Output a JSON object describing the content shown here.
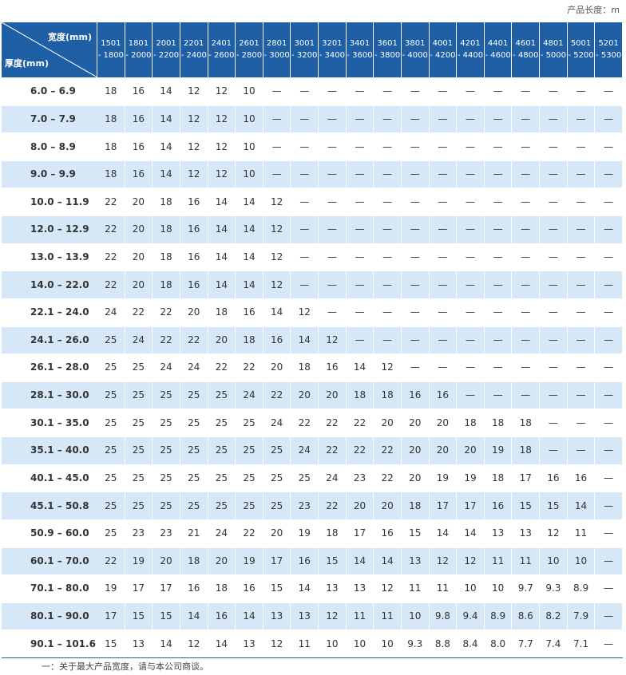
{
  "header": {
    "unit_note": "产品长度：m"
  },
  "table": {
    "corner": {
      "width_label": "宽度(mm)",
      "thickness_label": "厚度(mm)"
    },
    "columns": [
      [
        "1501",
        "- 1800"
      ],
      [
        "1801",
        "- 2000"
      ],
      [
        "2001",
        "- 2200"
      ],
      [
        "2201",
        "- 2400"
      ],
      [
        "2401",
        "- 2600"
      ],
      [
        "2601",
        "- 2800"
      ],
      [
        "2801",
        "- 3000"
      ],
      [
        "3001",
        "- 3200"
      ],
      [
        "3201",
        "- 3400"
      ],
      [
        "3401",
        "- 3600"
      ],
      [
        "3601",
        "- 3800"
      ],
      [
        "3801",
        "- 4000"
      ],
      [
        "4001",
        "- 4200"
      ],
      [
        "4201",
        "- 4400"
      ],
      [
        "4401",
        "- 4600"
      ],
      [
        "4601",
        "- 4800"
      ],
      [
        "4801",
        "- 5000"
      ],
      [
        "5001",
        "- 5200"
      ],
      [
        "5201",
        "- 5300"
      ]
    ],
    "rows": [
      {
        "label": "6.0 –  6.9",
        "cells": [
          "18",
          "16",
          "14",
          "12",
          "12",
          "10",
          "—",
          "—",
          "—",
          "—",
          "—",
          "—",
          "—",
          "—",
          "—",
          "—",
          "—",
          "—",
          "—"
        ]
      },
      {
        "label": "7.0 –  7.9",
        "cells": [
          "18",
          "16",
          "14",
          "12",
          "12",
          "10",
          "—",
          "—",
          "—",
          "—",
          "—",
          "—",
          "—",
          "—",
          "—",
          "—",
          "—",
          "—",
          "—"
        ]
      },
      {
        "label": "8.0 –  8.9",
        "cells": [
          "18",
          "16",
          "14",
          "12",
          "12",
          "10",
          "—",
          "—",
          "—",
          "—",
          "—",
          "—",
          "—",
          "—",
          "—",
          "—",
          "—",
          "—",
          "—"
        ]
      },
      {
        "label": "9.0 –  9.9",
        "cells": [
          "18",
          "16",
          "14",
          "12",
          "12",
          "10",
          "—",
          "—",
          "—",
          "—",
          "—",
          "—",
          "—",
          "—",
          "—",
          "—",
          "—",
          "—",
          "—"
        ]
      },
      {
        "label": "10.0 – 11.9",
        "cells": [
          "22",
          "20",
          "18",
          "16",
          "14",
          "14",
          "12",
          "—",
          "—",
          "—",
          "—",
          "—",
          "—",
          "—",
          "—",
          "—",
          "—",
          "—",
          "—"
        ]
      },
      {
        "label": "12.0 – 12.9",
        "cells": [
          "22",
          "20",
          "18",
          "16",
          "14",
          "14",
          "12",
          "—",
          "—",
          "—",
          "—",
          "—",
          "—",
          "—",
          "—",
          "—",
          "—",
          "—",
          "—"
        ]
      },
      {
        "label": "13.0 – 13.9",
        "cells": [
          "22",
          "20",
          "18",
          "16",
          "14",
          "14",
          "12",
          "—",
          "—",
          "—",
          "—",
          "—",
          "—",
          "—",
          "—",
          "—",
          "—",
          "—",
          "—"
        ]
      },
      {
        "label": "14.0 – 22.0",
        "cells": [
          "22",
          "20",
          "18",
          "16",
          "14",
          "14",
          "12",
          "—",
          "—",
          "—",
          "—",
          "—",
          "—",
          "—",
          "—",
          "—",
          "—",
          "—",
          "—"
        ]
      },
      {
        "label": "22.1 – 24.0",
        "cells": [
          "24",
          "22",
          "22",
          "20",
          "18",
          "16",
          "14",
          "12",
          "—",
          "—",
          "—",
          "—",
          "—",
          "—",
          "—",
          "—",
          "—",
          "—",
          "—"
        ]
      },
      {
        "label": "24.1 – 26.0",
        "cells": [
          "25",
          "24",
          "22",
          "22",
          "20",
          "18",
          "16",
          "14",
          "12",
          "—",
          "—",
          "—",
          "—",
          "—",
          "—",
          "—",
          "—",
          "—",
          "—"
        ]
      },
      {
        "label": "26.1 – 28.0",
        "cells": [
          "25",
          "25",
          "24",
          "24",
          "22",
          "22",
          "20",
          "18",
          "16",
          "14",
          "12",
          "—",
          "—",
          "—",
          "—",
          "—",
          "—",
          "—",
          "—"
        ]
      },
      {
        "label": "28.1 – 30.0",
        "cells": [
          "25",
          "25",
          "25",
          "25",
          "25",
          "24",
          "22",
          "20",
          "20",
          "18",
          "18",
          "16",
          "16",
          "—",
          "—",
          "—",
          "—",
          "—",
          "—"
        ]
      },
      {
        "label": "30.1 – 35.0",
        "cells": [
          "25",
          "25",
          "25",
          "25",
          "25",
          "25",
          "24",
          "22",
          "22",
          "22",
          "20",
          "20",
          "20",
          "18",
          "18",
          "18",
          "—",
          "—",
          "—"
        ]
      },
      {
        "label": "35.1 – 40.0",
        "cells": [
          "25",
          "25",
          "25",
          "25",
          "25",
          "25",
          "25",
          "24",
          "22",
          "22",
          "22",
          "20",
          "20",
          "20",
          "19",
          "18",
          "—",
          "—",
          "—"
        ]
      },
      {
        "label": "40.1 – 45.0",
        "cells": [
          "25",
          "25",
          "25",
          "25",
          "25",
          "25",
          "25",
          "25",
          "24",
          "23",
          "22",
          "20",
          "19",
          "19",
          "18",
          "17",
          "16",
          "16",
          "—"
        ]
      },
      {
        "label": "45.1 – 50.8",
        "cells": [
          "25",
          "25",
          "25",
          "25",
          "25",
          "25",
          "25",
          "23",
          "22",
          "20",
          "20",
          "18",
          "17",
          "17",
          "16",
          "15",
          "15",
          "14",
          "—"
        ]
      },
      {
        "label": "50.9 – 60.0",
        "cells": [
          "25",
          "23",
          "23",
          "21",
          "24",
          "22",
          "20",
          "19",
          "18",
          "17",
          "16",
          "15",
          "14",
          "14",
          "13",
          "13",
          "12",
          "11",
          "—"
        ]
      },
      {
        "label": "60.1 – 70.0",
        "cells": [
          "22",
          "19",
          "20",
          "18",
          "20",
          "19",
          "17",
          "16",
          "15",
          "14",
          "14",
          "13",
          "12",
          "12",
          "11",
          "11",
          "10",
          "10",
          "—"
        ]
      },
      {
        "label": "70.1 – 80.0",
        "cells": [
          "19",
          "17",
          "17",
          "16",
          "18",
          "16",
          "15",
          "14",
          "13",
          "13",
          "12",
          "11",
          "11",
          "10",
          "10",
          "9.7",
          "9.3",
          "8.9",
          "—"
        ]
      },
      {
        "label": "80.1 – 90.0",
        "cells": [
          "17",
          "15",
          "15",
          "14",
          "16",
          "14",
          "13",
          "13",
          "12",
          "11",
          "11",
          "10",
          "9.8",
          "9.4",
          "8.9",
          "8.6",
          "8.2",
          "7.9",
          "—"
        ]
      },
      {
        "label": "90.1 – 101.6",
        "cells": [
          "15",
          "13",
          "14",
          "12",
          "14",
          "13",
          "12",
          "11",
          "10",
          "10",
          "10",
          "9.3",
          "8.8",
          "8.4",
          "8.0",
          "7.7",
          "7.4",
          "7.1",
          "—"
        ]
      }
    ]
  },
  "footnote": "一：关于最大产品宽度，请与本公司商谈。"
}
